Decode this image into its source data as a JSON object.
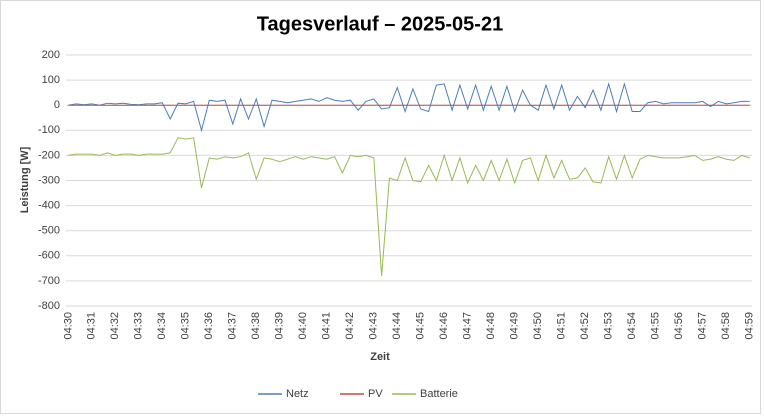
{
  "chart_data": {
    "type": "line",
    "title": "Tagesverlauf – 2025-05-21",
    "x_label": "Zeit",
    "y_label": "Leistung [W]",
    "categories": [
      "04:30",
      null,
      null,
      "04:31",
      null,
      null,
      "04:32",
      null,
      null,
      "04:33",
      null,
      null,
      "04:34",
      null,
      null,
      "04:35",
      null,
      null,
      "04:36",
      null,
      null,
      "04:37",
      null,
      null,
      "04:38",
      null,
      null,
      "04:39",
      null,
      null,
      "04:40",
      null,
      null,
      "04:41",
      null,
      null,
      "04:42",
      null,
      null,
      "04:43",
      null,
      null,
      "04:44",
      null,
      null,
      "04:45",
      null,
      null,
      "04:46",
      null,
      null,
      "04:47",
      null,
      null,
      "04:48",
      null,
      null,
      "04:49",
      null,
      null,
      "04:50",
      null,
      null,
      "04:51",
      null,
      null,
      "04:52",
      null,
      null,
      "04:53",
      null,
      null,
      "04:54",
      null,
      null,
      "04:55",
      null,
      null,
      "04:56",
      null,
      null,
      "04:57",
      null,
      null,
      "04:58",
      null,
      null,
      "04:59"
    ],
    "series": [
      {
        "name": "Netz",
        "color": "#4a7ebb",
        "values": [
          0,
          5,
          2,
          5,
          0,
          8,
          5,
          8,
          3,
          2,
          5,
          5,
          10,
          -55,
          8,
          5,
          15,
          -100,
          20,
          15,
          20,
          -75,
          25,
          -55,
          25,
          -85,
          20,
          15,
          10,
          15,
          20,
          25,
          15,
          30,
          20,
          15,
          20,
          -20,
          15,
          25,
          -15,
          -10,
          70,
          -25,
          65,
          -15,
          -25,
          80,
          85,
          -20,
          80,
          -15,
          80,
          -20,
          75,
          -20,
          75,
          -25,
          60,
          0,
          -20,
          80,
          -15,
          80,
          -20,
          35,
          -10,
          60,
          -20,
          85,
          -25,
          85,
          -25,
          -25,
          10,
          15,
          5,
          10,
          10,
          10,
          10,
          15,
          -5,
          15,
          5,
          10,
          15,
          15
        ]
      },
      {
        "name": "PV",
        "color": "#be4b48",
        "values": [
          0,
          0,
          0,
          0,
          0,
          0,
          0,
          0,
          0,
          0,
          0,
          0,
          0,
          0,
          0,
          0,
          0,
          0,
          0,
          0,
          0,
          0,
          0,
          0,
          0,
          0,
          0,
          0,
          0,
          0,
          0,
          0,
          0,
          0,
          0,
          0,
          0,
          0,
          0,
          0,
          0,
          0,
          0,
          0,
          0,
          0,
          0,
          0,
          0,
          0,
          0,
          0,
          0,
          0,
          0,
          0,
          0,
          0,
          0,
          0,
          0,
          0,
          0,
          0,
          0,
          0,
          0,
          0,
          0,
          0,
          0,
          0,
          0,
          0,
          0,
          0,
          0,
          0,
          0,
          0,
          0,
          0,
          0,
          0,
          0,
          0,
          0,
          0
        ]
      },
      {
        "name": "Batterie",
        "color": "#98b954",
        "values": [
          -200,
          -195,
          -195,
          -195,
          -200,
          -190,
          -200,
          -195,
          -195,
          -200,
          -195,
          -195,
          -195,
          -190,
          -130,
          -135,
          -130,
          -330,
          -210,
          -215,
          -205,
          -210,
          -205,
          -190,
          -295,
          -210,
          -215,
          -225,
          -215,
          -205,
          -215,
          -205,
          -210,
          -215,
          -205,
          -270,
          -200,
          -205,
          -200,
          -210,
          -680,
          -290,
          -300,
          -210,
          -300,
          -305,
          -240,
          -300,
          -200,
          -300,
          -210,
          -310,
          -240,
          -300,
          -220,
          -300,
          -215,
          -310,
          -220,
          -210,
          -300,
          -200,
          -290,
          -220,
          -295,
          -290,
          -250,
          -305,
          -310,
          -205,
          -295,
          -200,
          -290,
          -215,
          -200,
          -205,
          -210,
          -210,
          -210,
          -205,
          -200,
          -220,
          -215,
          -205,
          -215,
          -220,
          -200,
          -210
        ]
      }
    ],
    "ylim": [
      -800,
      200
    ],
    "yticks": [
      -800,
      -700,
      -600,
      -500,
      -400,
      -300,
      -200,
      -100,
      0,
      100,
      200
    ],
    "grid": true,
    "legend": "bottom"
  }
}
